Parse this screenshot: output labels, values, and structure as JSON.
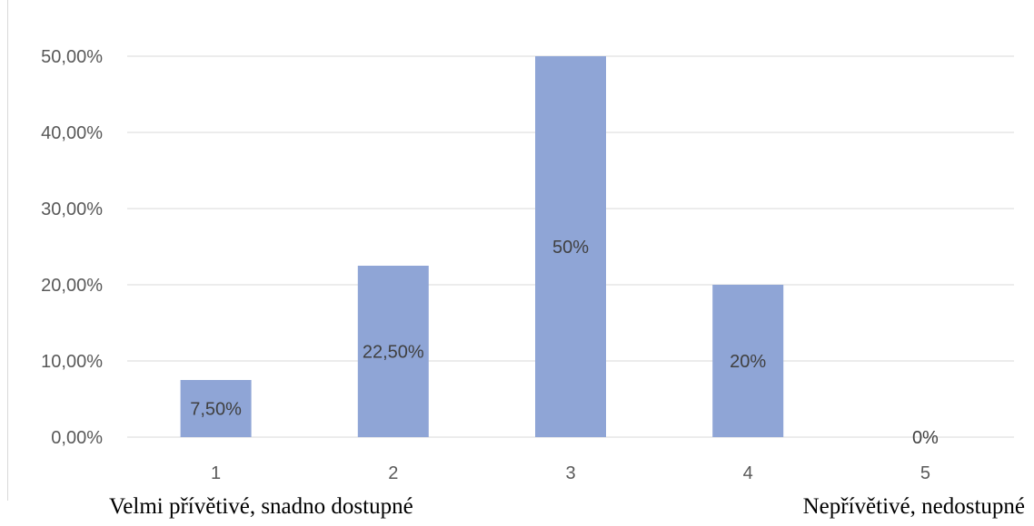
{
  "chart_data": {
    "type": "bar",
    "categories": [
      "1",
      "2",
      "3",
      "4",
      "5"
    ],
    "values": [
      7.5,
      22.5,
      50,
      20,
      0
    ],
    "data_labels": [
      "7,50%",
      "22,50%",
      "50%",
      "20%",
      "0%"
    ],
    "y_ticks": [
      0,
      10,
      20,
      30,
      40,
      50
    ],
    "y_tick_labels": [
      "0,00%",
      "10,00%",
      "20,00%",
      "30,00%",
      "40,00%",
      "50,00%"
    ],
    "ylim": [
      0,
      50
    ],
    "grid": true,
    "bar_color": "#8FA5D6",
    "gridline_color": "#d9d9d9"
  },
  "captions": {
    "left": "Velmi přívětivé, snadno dostupné",
    "right": "Nepřívětivé, nedostupné"
  }
}
